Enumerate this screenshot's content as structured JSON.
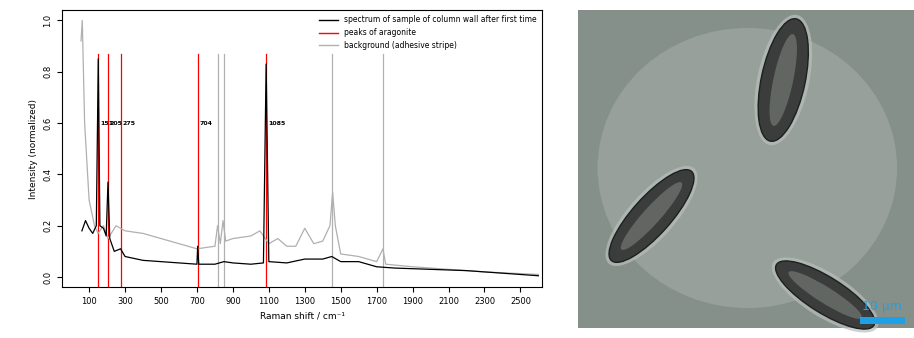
{
  "chart_data": {
    "type": "line",
    "xlabel": "Raman shift / cm⁻¹",
    "ylabel": "Intensity (normalized)",
    "xlim": [
      -50,
      2620
    ],
    "ylim": [
      -0.04,
      1.04
    ],
    "xticks": [
      100,
      300,
      500,
      700,
      900,
      1100,
      1300,
      1500,
      1700,
      1900,
      2100,
      2300,
      2500
    ],
    "yticks": [
      {
        "value": 0,
        "label": "0.0"
      },
      0.2,
      0.4,
      0.6,
      0.8,
      {
        "value": 1,
        "label": "1.0"
      }
    ],
    "legend": "upper right",
    "grid": false,
    "series": [
      {
        "name": "spectrum of sample of column wall after first time",
        "type": "line",
        "color": "#000000",
        "x": [
          60,
          80,
          100,
          120,
          140,
          151,
          160,
          180,
          195,
          205,
          215,
          240,
          275,
          300,
          400,
          500,
          600,
          700,
          704,
          710,
          800,
          850,
          900,
          1000,
          1070,
          1085,
          1100,
          1200,
          1300,
          1400,
          1450,
          1500,
          1600,
          1700,
          1800,
          2000,
          2200,
          2400,
          2600
        ],
        "values": [
          0.18,
          0.22,
          0.19,
          0.17,
          0.2,
          0.85,
          0.2,
          0.19,
          0.16,
          0.37,
          0.15,
          0.1,
          0.11,
          0.08,
          0.065,
          0.06,
          0.055,
          0.05,
          0.12,
          0.05,
          0.05,
          0.06,
          0.055,
          0.05,
          0.055,
          0.83,
          0.06,
          0.055,
          0.07,
          0.07,
          0.08,
          0.06,
          0.06,
          0.04,
          0.035,
          0.03,
          0.025,
          0.015,
          0.005
        ]
      },
      {
        "name": "peaks of aragonite",
        "type": "vline",
        "color": "#ff0000",
        "data_labels": true,
        "x": [
          151,
          205,
          275,
          704,
          1085
        ],
        "values": [
          0.6,
          0.6,
          0.6,
          0.6,
          0.6
        ]
      },
      {
        "name": "background (adhesive stripe)",
        "type": "line",
        "color": "#b0b0b0",
        "x": [
          55,
          62,
          75,
          100,
          130,
          150,
          180,
          205,
          250,
          300,
          400,
          500,
          600,
          700,
          800,
          815,
          830,
          845,
          860,
          900,
          1000,
          1050,
          1100,
          1150,
          1200,
          1250,
          1300,
          1350,
          1400,
          1440,
          1455,
          1470,
          1500,
          1600,
          1700,
          1735,
          1750,
          1900,
          2100,
          2300,
          2600
        ],
        "values": [
          0.92,
          1.0,
          0.6,
          0.3,
          0.2,
          0.17,
          0.2,
          0.15,
          0.2,
          0.18,
          0.17,
          0.15,
          0.13,
          0.11,
          0.12,
          0.2,
          0.13,
          0.22,
          0.14,
          0.15,
          0.16,
          0.18,
          0.13,
          0.15,
          0.12,
          0.12,
          0.19,
          0.13,
          0.14,
          0.2,
          0.33,
          0.2,
          0.09,
          0.08,
          0.06,
          0.11,
          0.05,
          0.04,
          0.03,
          0.02,
          0.01
        ],
        "peaks": [
          818,
          848,
          1453,
          1733
        ]
      }
    ]
  },
  "image": {
    "type": "micrograph",
    "scale_bar_label": "10 µm",
    "scale_bar_color": "#1ea0e6"
  }
}
